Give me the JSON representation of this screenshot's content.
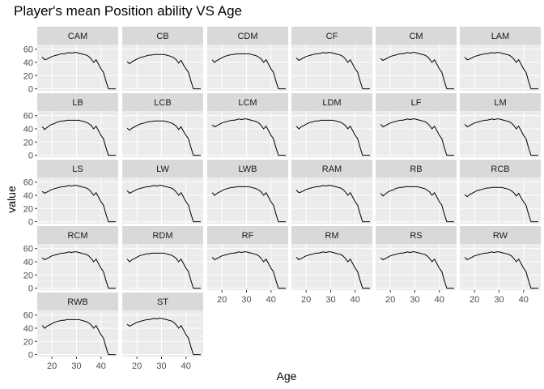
{
  "title": "Player's mean Position ability VS Age",
  "chart_data": {
    "type": "line",
    "title": "Player's mean Position ability VS Age",
    "xlabel": "Age",
    "ylabel": "value",
    "xlim": [
      14,
      47
    ],
    "ylim": [
      -3,
      67
    ],
    "xticks": [
      20,
      30,
      40
    ],
    "yticks": [
      0,
      20,
      40,
      60
    ],
    "grid": true,
    "facet_layout": "6 columns, 5 rows, facet_wrap",
    "panels": [
      "CAM",
      "CB",
      "CDM",
      "CF",
      "CM",
      "LAM",
      "LB",
      "LCB",
      "LCM",
      "LDM",
      "LF",
      "LM",
      "LS",
      "LW",
      "LWB",
      "RAM",
      "RB",
      "RCB",
      "RCM",
      "RDM",
      "RF",
      "RM",
      "RS",
      "RW",
      "RWB",
      "ST"
    ],
    "x": [
      16,
      17,
      18,
      19,
      20,
      21,
      22,
      23,
      24,
      25,
      26,
      27,
      28,
      29,
      30,
      31,
      32,
      33,
      34,
      35,
      36,
      37,
      38,
      39,
      40,
      41,
      42,
      43,
      44,
      45,
      46
    ],
    "series": [
      {
        "name": "CAM",
        "values": [
          48,
          44,
          45,
          47,
          49,
          50,
          51,
          52,
          53,
          53,
          54,
          55,
          54,
          55,
          55,
          54,
          53,
          52,
          51,
          49,
          45,
          40,
          44,
          37,
          30,
          25,
          12,
          0,
          0,
          0,
          0
        ]
      },
      {
        "name": "CB",
        "values": [
          41,
          38,
          41,
          43,
          45,
          47,
          48,
          49,
          50,
          51,
          51,
          52,
          52,
          52,
          52,
          52,
          51,
          50,
          49,
          47,
          44,
          39,
          43,
          36,
          30,
          25,
          12,
          0,
          0,
          0,
          0
        ]
      },
      {
        "name": "CDM",
        "values": [
          44,
          40,
          43,
          45,
          47,
          49,
          50,
          51,
          52,
          52,
          53,
          53,
          53,
          53,
          53,
          53,
          52,
          51,
          50,
          48,
          45,
          40,
          44,
          37,
          30,
          25,
          12,
          0,
          0,
          0,
          0
        ]
      },
      {
        "name": "CF",
        "values": [
          47,
          43,
          45,
          47,
          49,
          50,
          51,
          52,
          53,
          53,
          54,
          55,
          54,
          55,
          55,
          54,
          53,
          52,
          51,
          49,
          45,
          40,
          44,
          37,
          30,
          25,
          12,
          0,
          0,
          0,
          0
        ]
      },
      {
        "name": "CM",
        "values": [
          46,
          43,
          45,
          47,
          49,
          50,
          51,
          52,
          53,
          53,
          54,
          55,
          54,
          55,
          55,
          54,
          53,
          52,
          51,
          49,
          45,
          40,
          44,
          37,
          30,
          25,
          12,
          0,
          0,
          0,
          0
        ]
      },
      {
        "name": "LAM",
        "values": [
          48,
          44,
          45,
          47,
          49,
          50,
          51,
          52,
          53,
          53,
          54,
          55,
          54,
          55,
          55,
          54,
          53,
          52,
          51,
          49,
          45,
          40,
          44,
          37,
          30,
          25,
          12,
          0,
          0,
          0,
          0
        ]
      },
      {
        "name": "LB",
        "values": [
          43,
          39,
          42,
          45,
          47,
          48,
          50,
          51,
          52,
          52,
          53,
          53,
          53,
          53,
          53,
          53,
          52,
          51,
          50,
          48,
          45,
          40,
          44,
          37,
          30,
          25,
          12,
          0,
          0,
          0,
          0
        ]
      },
      {
        "name": "LCB",
        "values": [
          41,
          38,
          41,
          43,
          45,
          47,
          48,
          49,
          50,
          51,
          51,
          52,
          52,
          52,
          52,
          52,
          51,
          50,
          49,
          47,
          44,
          39,
          43,
          36,
          30,
          25,
          12,
          0,
          0,
          0,
          0
        ]
      },
      {
        "name": "LCM",
        "values": [
          46,
          43,
          45,
          47,
          49,
          50,
          51,
          52,
          53,
          53,
          54,
          55,
          54,
          55,
          55,
          54,
          53,
          52,
          51,
          49,
          45,
          40,
          44,
          37,
          30,
          25,
          12,
          0,
          0,
          0,
          0
        ]
      },
      {
        "name": "LDM",
        "values": [
          44,
          40,
          43,
          45,
          47,
          49,
          50,
          51,
          52,
          52,
          53,
          53,
          53,
          53,
          53,
          53,
          52,
          51,
          50,
          48,
          45,
          40,
          44,
          37,
          30,
          25,
          12,
          0,
          0,
          0,
          0
        ]
      },
      {
        "name": "LF",
        "values": [
          47,
          43,
          45,
          47,
          49,
          50,
          51,
          52,
          53,
          53,
          54,
          55,
          54,
          55,
          55,
          54,
          53,
          52,
          51,
          49,
          45,
          40,
          44,
          37,
          30,
          25,
          12,
          0,
          0,
          0,
          0
        ]
      },
      {
        "name": "LM",
        "values": [
          47,
          43,
          45,
          47,
          49,
          50,
          51,
          52,
          53,
          53,
          54,
          55,
          54,
          55,
          55,
          54,
          53,
          52,
          51,
          49,
          45,
          40,
          44,
          37,
          30,
          25,
          12,
          0,
          0,
          0,
          0
        ]
      },
      {
        "name": "LS",
        "values": [
          46,
          43,
          45,
          47,
          49,
          50,
          51,
          52,
          53,
          53,
          54,
          55,
          54,
          55,
          55,
          54,
          53,
          52,
          51,
          49,
          45,
          40,
          44,
          37,
          30,
          25,
          12,
          0,
          0,
          0,
          0
        ]
      },
      {
        "name": "LW",
        "values": [
          47,
          43,
          45,
          47,
          49,
          50,
          51,
          52,
          53,
          53,
          54,
          55,
          54,
          55,
          55,
          54,
          53,
          52,
          51,
          49,
          45,
          40,
          44,
          37,
          30,
          25,
          12,
          0,
          0,
          0,
          0
        ]
      },
      {
        "name": "LWB",
        "values": [
          44,
          40,
          43,
          45,
          47,
          49,
          50,
          51,
          52,
          52,
          53,
          53,
          53,
          53,
          53,
          53,
          52,
          51,
          50,
          48,
          45,
          40,
          44,
          37,
          30,
          25,
          12,
          0,
          0,
          0,
          0
        ]
      },
      {
        "name": "RAM",
        "values": [
          48,
          44,
          45,
          47,
          49,
          50,
          51,
          52,
          53,
          53,
          54,
          55,
          54,
          55,
          55,
          54,
          53,
          52,
          51,
          49,
          45,
          40,
          44,
          37,
          30,
          25,
          12,
          0,
          0,
          0,
          0
        ]
      },
      {
        "name": "RB",
        "values": [
          43,
          39,
          42,
          45,
          47,
          48,
          50,
          51,
          52,
          52,
          53,
          53,
          53,
          53,
          53,
          53,
          52,
          51,
          50,
          48,
          45,
          40,
          44,
          37,
          30,
          25,
          12,
          0,
          0,
          0,
          0
        ]
      },
      {
        "name": "RCB",
        "values": [
          41,
          38,
          41,
          43,
          45,
          47,
          48,
          49,
          50,
          51,
          51,
          52,
          52,
          52,
          52,
          52,
          51,
          50,
          49,
          47,
          44,
          39,
          43,
          36,
          30,
          25,
          12,
          0,
          0,
          0,
          0
        ]
      },
      {
        "name": "RCM",
        "values": [
          46,
          43,
          45,
          47,
          49,
          50,
          51,
          52,
          53,
          53,
          54,
          55,
          54,
          55,
          55,
          54,
          53,
          52,
          51,
          49,
          45,
          40,
          44,
          37,
          30,
          25,
          12,
          0,
          0,
          0,
          0
        ]
      },
      {
        "name": "RDM",
        "values": [
          44,
          40,
          43,
          45,
          47,
          49,
          50,
          51,
          52,
          52,
          53,
          53,
          53,
          53,
          53,
          53,
          52,
          51,
          50,
          48,
          45,
          40,
          44,
          37,
          30,
          25,
          12,
          0,
          0,
          0,
          0
        ]
      },
      {
        "name": "RF",
        "values": [
          47,
          43,
          45,
          47,
          49,
          50,
          51,
          52,
          53,
          53,
          54,
          55,
          54,
          55,
          55,
          54,
          53,
          52,
          51,
          49,
          45,
          40,
          44,
          37,
          30,
          25,
          12,
          0,
          0,
          0,
          0
        ]
      },
      {
        "name": "RM",
        "values": [
          47,
          43,
          45,
          47,
          49,
          50,
          51,
          52,
          53,
          53,
          54,
          55,
          54,
          55,
          55,
          54,
          53,
          52,
          51,
          49,
          45,
          40,
          44,
          37,
          30,
          25,
          12,
          0,
          0,
          0,
          0
        ]
      },
      {
        "name": "RS",
        "values": [
          46,
          43,
          45,
          47,
          49,
          50,
          51,
          52,
          53,
          53,
          54,
          55,
          54,
          55,
          55,
          54,
          53,
          52,
          51,
          49,
          45,
          40,
          44,
          37,
          30,
          25,
          12,
          0,
          0,
          0,
          0
        ]
      },
      {
        "name": "RW",
        "values": [
          47,
          43,
          45,
          47,
          49,
          50,
          51,
          52,
          53,
          53,
          54,
          55,
          54,
          55,
          55,
          54,
          53,
          52,
          51,
          49,
          45,
          40,
          44,
          37,
          30,
          25,
          12,
          0,
          0,
          0,
          0
        ]
      },
      {
        "name": "RWB",
        "values": [
          44,
          40,
          43,
          45,
          47,
          49,
          50,
          51,
          52,
          52,
          53,
          53,
          53,
          53,
          53,
          53,
          52,
          51,
          50,
          48,
          45,
          40,
          44,
          37,
          30,
          25,
          12,
          0,
          0,
          0,
          0
        ]
      },
      {
        "name": "ST",
        "values": [
          46,
          43,
          45,
          47,
          49,
          50,
          51,
          52,
          53,
          53,
          54,
          55,
          54,
          55,
          55,
          54,
          53,
          52,
          51,
          49,
          45,
          40,
          44,
          37,
          30,
          25,
          12,
          0,
          0,
          0,
          0
        ]
      }
    ]
  },
  "colors": {
    "panel_bg": "#ebebeb",
    "strip_bg": "#d9d9d9",
    "grid_major": "#ffffff",
    "grid_minor": "#f5f5f5",
    "line": "#000000",
    "axis_text": "#4d4d4d",
    "strip_text": "#1a1a1a"
  }
}
